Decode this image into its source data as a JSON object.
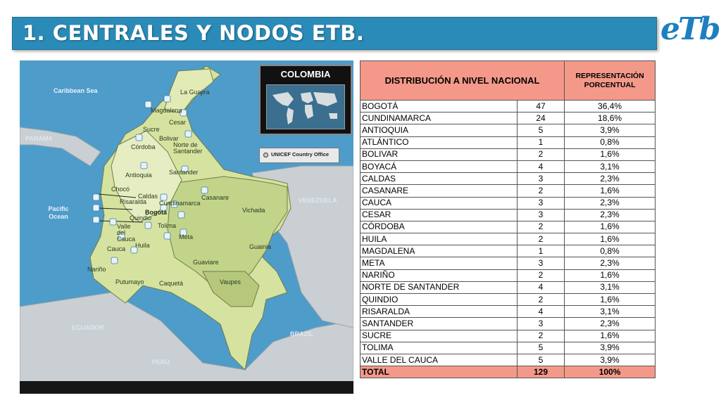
{
  "header": {
    "title": "1. CENTRALES Y NODOS ETB.",
    "logo_text": "eTb"
  },
  "map": {
    "inset_title": "COLOMBIA",
    "legend_text": "UNICEF Country Office",
    "seas": [
      "Caribbean Sea",
      "Pacific Ocean"
    ],
    "countries": [
      "PANAMA",
      "VENEZUELA",
      "ECUADOR",
      "PERU",
      "BRAZIL"
    ],
    "departments": [
      "La Guajira",
      "Magdalena",
      "Cesar",
      "Sucre",
      "Bolivar",
      "Córdoba",
      "Norte de Santander",
      "Antioquia",
      "Santander",
      "Chocó",
      "Caldas",
      "Risaralda",
      "Cundinamarca",
      "Casanare",
      "Vichada",
      "Quindio",
      "Valle del Cauca",
      "Tolima",
      "Meta",
      "Guainia",
      "Cauca",
      "Huila",
      "Guaviare",
      "Nariño",
      "Putumayo",
      "Caquetá",
      "Vaupes"
    ],
    "capital": "Bogotá"
  },
  "table": {
    "header_left": "DISTRIBUCIÓN A NIVEL NACIONAL",
    "header_right": "REPRESENTACIÓN PORCENTUAL",
    "rows": [
      {
        "dept": "BOGOTÁ",
        "count": "47",
        "pct": "36,4%"
      },
      {
        "dept": "CUNDINAMARCA",
        "count": "24",
        "pct": "18,6%"
      },
      {
        "dept": "ANTIOQUIA",
        "count": "5",
        "pct": "3,9%"
      },
      {
        "dept": "ATLÁNTICO",
        "count": "1",
        "pct": "0,8%"
      },
      {
        "dept": "BOLIVAR",
        "count": "2",
        "pct": "1,6%"
      },
      {
        "dept": "BOYACÁ",
        "count": "4",
        "pct": "3,1%"
      },
      {
        "dept": "CALDAS",
        "count": "3",
        "pct": "2,3%"
      },
      {
        "dept": "CASANARE",
        "count": "2",
        "pct": "1,6%"
      },
      {
        "dept": "CAUCA",
        "count": "3",
        "pct": "2,3%"
      },
      {
        "dept": "CESAR",
        "count": "3",
        "pct": "2,3%"
      },
      {
        "dept": "CÓRDOBA",
        "count": "2",
        "pct": "1,6%"
      },
      {
        "dept": "HUILA",
        "count": "2",
        "pct": "1,6%"
      },
      {
        "dept": "MAGDALENA",
        "count": "1",
        "pct": "0,8%"
      },
      {
        "dept": "META",
        "count": "3",
        "pct": "2,3%"
      },
      {
        "dept": "NARIÑO",
        "count": "2",
        "pct": "1,6%"
      },
      {
        "dept": "NORTE DE SANTANDER",
        "count": "4",
        "pct": "3,1%"
      },
      {
        "dept": "QUINDIO",
        "count": "2",
        "pct": "1,6%"
      },
      {
        "dept": "RISARALDA",
        "count": "4",
        "pct": "3,1%"
      },
      {
        "dept": "SANTANDER",
        "count": "3",
        "pct": "2,3%"
      },
      {
        "dept": "SUCRE",
        "count": "2",
        "pct": "1,6%"
      },
      {
        "dept": "TOLIMA",
        "count": "5",
        "pct": "3,9%"
      },
      {
        "dept": "VALLE DEL CAUCA",
        "count": "5",
        "pct": "3,9%"
      }
    ],
    "total": {
      "dept": "TOTAL",
      "count": "129",
      "pct": "100%"
    }
  },
  "colors": {
    "title_bar": "#2a8bb8",
    "table_header": "#f4998a",
    "ocean": "#4e9cc9",
    "colombia": "#d6e3a0",
    "logo": "#1e7fc0"
  }
}
